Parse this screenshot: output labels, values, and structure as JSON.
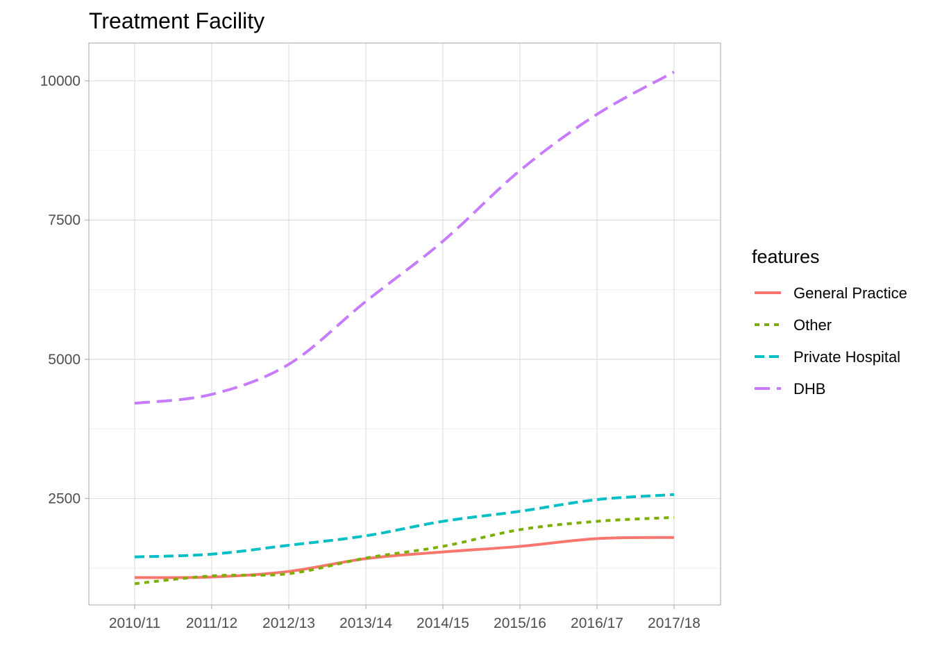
{
  "chart_data": {
    "type": "line",
    "title": "Treatment Facility",
    "xlabel": "",
    "ylabel": "",
    "categories": [
      "2010/11",
      "2011/12",
      "2012/13",
      "2013/14",
      "2014/15",
      "2015/16",
      "2016/17",
      "2017/18"
    ],
    "y_ticks": [
      2500,
      5000,
      7500,
      10000
    ],
    "ylim": [
      588,
      10680
    ],
    "grid": true,
    "legend": {
      "title": "features",
      "position": "right"
    },
    "series": [
      {
        "name": "General Practice",
        "color": "#F8766D",
        "dash": "solid",
        "values": [
          1080,
          1090,
          1190,
          1420,
          1540,
          1640,
          1780,
          1800
        ]
      },
      {
        "name": "Other",
        "color": "#7CAE00",
        "dash": "dotted",
        "values": [
          970,
          1110,
          1150,
          1430,
          1640,
          1940,
          2090,
          2160
        ]
      },
      {
        "name": "Private Hospital",
        "color": "#00BFC4",
        "dash": "dashed",
        "values": [
          1450,
          1500,
          1660,
          1830,
          2090,
          2270,
          2480,
          2570
        ]
      },
      {
        "name": "DHB",
        "color": "#C77CFF",
        "dash": "longdash",
        "values": [
          4210,
          4370,
          4910,
          6040,
          7120,
          8390,
          9400,
          10160
        ]
      }
    ]
  }
}
